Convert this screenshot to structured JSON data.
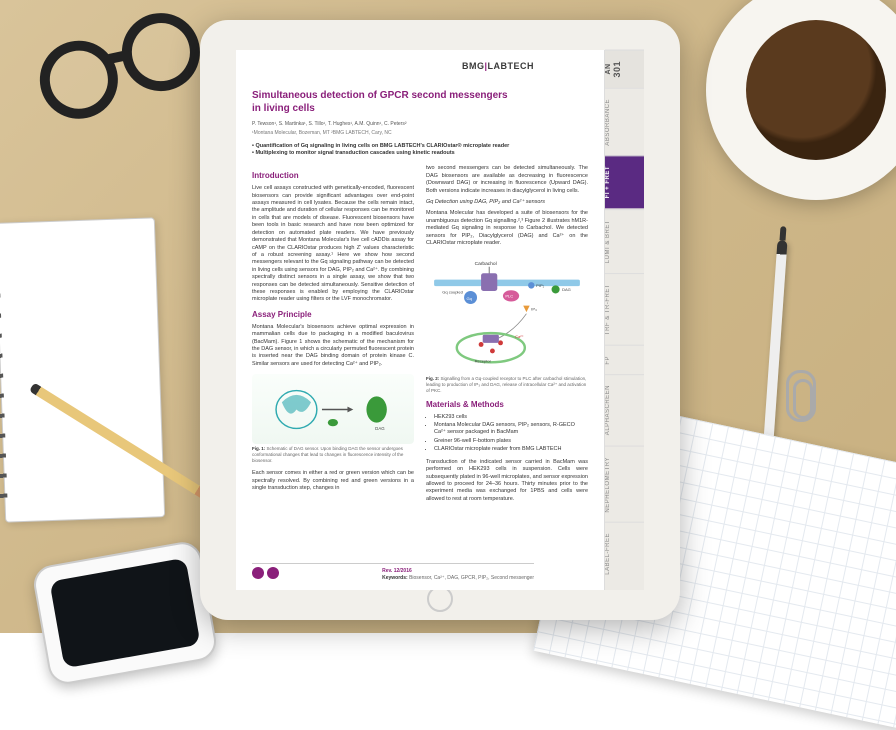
{
  "colors": {
    "accent": "#8a1f7a",
    "tab_active_bg": "#5a2a82",
    "tab_bg": "#eceae5",
    "desk": "#d0b98c"
  },
  "brand": {
    "left": "BMG",
    "right": "LABTECH"
  },
  "an_tab": {
    "label": "AN",
    "number": "301"
  },
  "tabs": [
    {
      "label": "ABSORBANCE",
      "active": false
    },
    {
      "label": "FI + FRET",
      "active": true
    },
    {
      "label": "LUMI & BRET",
      "active": false
    },
    {
      "label": "TRF & TR-FRET",
      "active": false
    },
    {
      "label": "FP",
      "active": false
    },
    {
      "label": "ALPHASCREEN",
      "active": false
    },
    {
      "label": "NEPHELOMETRY",
      "active": false
    },
    {
      "label": "LABEL-FREE",
      "active": false
    }
  ],
  "title": "Simultaneous detection of GPCR second messengers in living cells",
  "authors": "P. Tewson¹, S. Martinka¹, S. Tillo¹, T. Hughes¹, A.M. Quinn¹, C. Peters²",
  "affiliations": "¹Montana Molecular, Bozeman, MT  ²BMG LABTECH, Cary, NC",
  "bullets": [
    "Quantification of Gq signaling in living cells on BMG LABTECH's CLARIOstar® microplate reader",
    "Multiplexing to monitor signal transduction cascades using kinetic readouts"
  ],
  "sections": {
    "intro_h": "Introduction",
    "intro_p1": "Live cell assays constructed with genetically-encoded, fluorescent biosensors can provide significant advantages over end-point assays measured in cell lysates. Because the cells remain intact, the amplitude and duration of cellular responses can be monitored in cells that are models of disease. Fluorescent biosensors have been tools in basic research and have now been optimized for detection on automated plate readers. We have previously demonstrated that Montana Molecular's live cell cADDis assay for cAMP on the CLARIOstar produces high Z' values characteristic of a robust screening assay.¹ Here we show how second messengers relevant to the Gq signaling pathway can be detected in living cells using sensors for DAG, PIP₂ and Ca²⁺. By combining spectrally distinct sensors in a single assay, we show that two responses can be detected simultaneously. Sensitive detection of these responses is enabled by employing the CLARIOstar microplate reader using filters or the LVF monochromator.",
    "assay_h": "Assay Principle",
    "assay_p1": "Montana Molecular's biosensors achieve optimal expression in mammalian cells due to packaging in a modified baculovirus (BacMam). Figure 1 shows the schematic of the mechanism for the DAG sensor, in which a circularly permuted fluorescent protein is inserted near the DAG binding domain of protein kinase C. Similar sensors are used for detecting Ca²⁺ and PIP₂.",
    "intro_p2_right": "two second messengers can be detected simultaneously. The DAG biosensors are available as decreasing in fluorescence (Downward DAG) or increasing in fluorescence (Upward DAG). Both versions indicate increases in diacylglycerol in living cells.",
    "gq_h": "Gq Detection using DAG, PIP₂ and Ca²⁺ sensors",
    "gq_p": "Montana Molecular has developed a suite of biosensors for the unambiguous detection Gq signalling.²,³ Figure 2 illustrates hM1R-mediated Gq signaling in response to Carbachol. We detected sensors for PIP₂, Diacylglycerol (DAG) and Ca²⁺ on the CLARIOstar microplate reader.",
    "mm_h": "Materials & Methods",
    "mm_items": [
      "HEK293 cells",
      "Montana Molecular DAG sensors, PIP₂ sensors, R-GECO Ca²⁺ sensor packaged in BacMam",
      "Greiner 96-well F-bottom plates",
      "CLARIOstar microplate reader from BMG LABTECH"
    ],
    "mm_p": "Transduction of the indicated sensor carried in BacMam was performed on HEK293 cells in suspension. Cells were subsequently plated in 96-well microplates, and sensor expression allowed to proceed for 24–36 hours. Thirty minutes prior to the experiment media was exchanged for 1PBS and cells were allowed to rest at room temperature.",
    "below_fig1": "Each sensor comes in either a red or green version which can be spectrally resolved. By combining red and green versions in a single transduction step, changes in"
  },
  "fig1": {
    "label": "Fig. 1:",
    "caption": "Schematic of DAG sensor. Upon binding DAG the sensor undergoes conformational changes that lead to changes in fluorescence intensity of the biosensor.",
    "protein_color": "#2faab0",
    "dag_color": "#3a9a3a"
  },
  "fig2": {
    "label": "Fig. 2:",
    "caption": "Signalling from a Gq-coupled receptor to PLC after carbachol stimulation, leading to production of IP₃ and DAG, release of intracellular Ca²⁺ and activation of PKC.",
    "labels": {
      "carbachol": "Carbachol",
      "gq": "Gq",
      "plc": "PLC",
      "pip2": "PIP₂",
      "dag": "DAG",
      "ip3": "IP₃",
      "ca": "Ca²⁺",
      "rec": "Receptor",
      "gqc": "Gq coupled"
    },
    "colors": {
      "membrane": "#8fc9e8",
      "gq": "#5b8fd6",
      "plc": "#d65b9a",
      "dag": "#3a9a3a",
      "ip3": "#e89a3a",
      "ca": "#cf3a3a",
      "er": "#7fc97f"
    }
  },
  "footer": {
    "rev": "Rev. 12/2016",
    "keywords_label": "Keywords:",
    "keywords": "Biosensor, Ca²⁺, DAG, GPCR, PIP₂, Second messenger"
  }
}
